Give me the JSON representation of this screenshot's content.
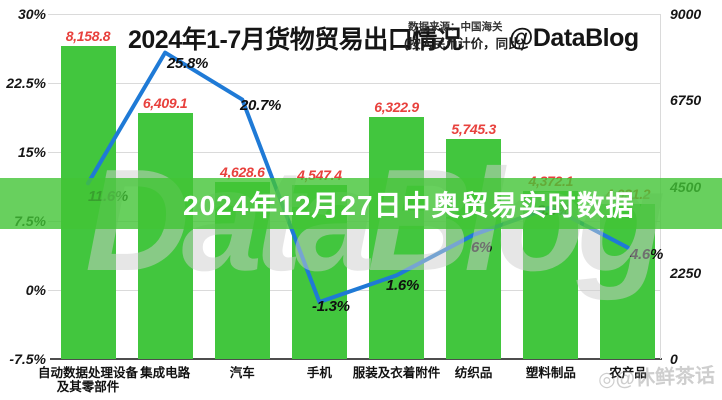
{
  "banner": {
    "text": "2024年12月27日中奥贸易实时数据"
  },
  "header": {
    "title": "2024年1-7月货物贸易出口情况",
    "subtitle": "(按人民币计价，同比)",
    "source": "数据来源：中国海关",
    "handle": "@DataBlog"
  },
  "watermarks": {
    "center": "DataBlog",
    "corner": "◎@休鲜茶话"
  },
  "chart_data": {
    "type": "bar+line",
    "title": "2024年1-7月货物贸易出口情况",
    "categories": [
      "自动数据处理设备\n及其零部件",
      "集成电路",
      "汽车",
      "手机",
      "服装及衣着附件",
      "纺织品",
      "塑料制品",
      "农产品"
    ],
    "series": [
      {
        "type": "bar",
        "axis": "right",
        "values": [
          8158.8,
          6409.1,
          4628.6,
          4547.4,
          6322.9,
          5745.3,
          4372.1,
          4031.2
        ],
        "labels": [
          "8,158.8",
          "6,409.1",
          "4,628.6",
          "4,547.4",
          "6,322.9",
          "5,745.3",
          "4,372.1",
          "4,031.2"
        ]
      },
      {
        "type": "line",
        "axis": "left",
        "values": [
          11.6,
          25.8,
          20.7,
          -1.3,
          1.6,
          6,
          9.0,
          4.6
        ],
        "labels": [
          "11.6%",
          "25.8%",
          "20.7%",
          "-1.3%",
          "1.6%",
          "6%",
          "9.0%",
          "4.6%"
        ]
      }
    ],
    "left_axis": {
      "ticks": [
        30,
        22.5,
        15,
        7.5,
        0,
        -7.5
      ],
      "tick_labels": [
        "30%",
        "22.5%",
        "15%",
        "7.5%",
        "0%",
        "-7.5%"
      ],
      "min": -7.5,
      "max": 30
    },
    "right_axis": {
      "ticks": [
        9000,
        6750,
        4500,
        2250,
        0
      ],
      "tick_labels": [
        "9000",
        "6750",
        "4500",
        "2250",
        "0"
      ],
      "min": 0,
      "max": 9000
    },
    "grid": true,
    "legend": false,
    "colors": {
      "bar": "#42c63e",
      "line": "#1f7ad6",
      "bar_label": "#e8413d",
      "banner": "rgba(66,196,54,0.8)"
    }
  }
}
